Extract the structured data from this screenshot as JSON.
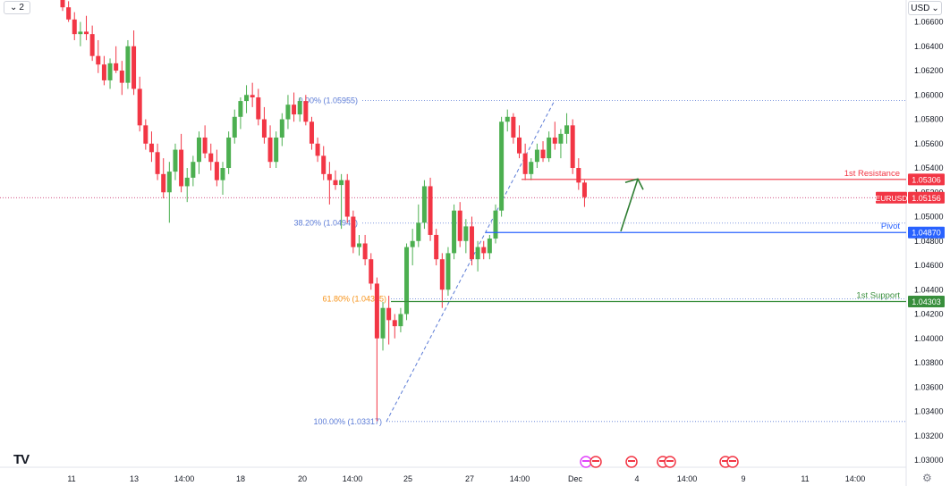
{
  "toolbar": {
    "interval_label": "2",
    "currency_label": "USD"
  },
  "colors": {
    "up": "#26a69a",
    "up_fill": "#4caf50",
    "down": "#f23645",
    "resistance": "#f23645",
    "pivot": "#2962ff",
    "support": "#388e3c",
    "symbol_tag": "#f23645",
    "fib_line": "#5b7bd6",
    "fib_61_text": "#f7931a",
    "arrow": "#2e7d32"
  },
  "icons": [
    "chevron-down-icon",
    "tradingview-logo",
    "settings-gear-icon",
    "event-flag-icon"
  ],
  "chart_data": {
    "type": "candlestick",
    "symbol": "EURUSD",
    "current_price": "1.05156",
    "ylim": [
      1.03,
      1.0678
    ],
    "y_ticks": [
      "1.03000",
      "1.03200",
      "1.03400",
      "1.03600",
      "1.03800",
      "1.04000",
      "1.04200",
      "1.04400",
      "1.04600",
      "1.04800",
      "1.05000",
      "1.05200",
      "1.05400",
      "1.05600",
      "1.05800",
      "1.06000",
      "1.06200",
      "1.06400",
      "1.06600"
    ],
    "x_ticks": [
      "11",
      "13",
      "14:00",
      "18",
      "20",
      "14:00",
      "25",
      "27",
      "14:00",
      "Dec",
      "4",
      "14:00",
      "9",
      "11",
      "14:00"
    ],
    "levels": [
      {
        "label": "1st Resistance",
        "value": "1.05306",
        "color_key": "resistance"
      },
      {
        "label": "Pivot",
        "value": "1.04870",
        "color_key": "pivot"
      },
      {
        "label": "1st Support",
        "value": "1.04303",
        "color_key": "support"
      }
    ],
    "fib_levels": [
      {
        "label": "0.00% (1.05955)",
        "value": 1.05955
      },
      {
        "label": "38.20% (1.04947)",
        "value": 1.04947
      },
      {
        "label": "61.80% (1.04325)",
        "value": 1.04325
      },
      {
        "label": "100.00% (1.03317)",
        "value": 1.03317
      }
    ],
    "fib_trendline": {
      "from": [
        1.03317,
        "low"
      ],
      "to": [
        1.05955,
        "high"
      ]
    },
    "arrow": {
      "from": 1.0488,
      "to": 1.0531,
      "direction": "up"
    },
    "candles": [
      [
        1.0678,
        1.0683,
        1.0669,
        1.0672
      ],
      [
        1.0672,
        1.0677,
        1.066,
        1.0662
      ],
      [
        1.0662,
        1.0668,
        1.0645,
        1.065
      ],
      [
        1.065,
        1.066,
        1.064,
        1.0652
      ],
      [
        1.0652,
        1.0665,
        1.0645,
        1.065
      ],
      [
        1.065,
        1.0657,
        1.0628,
        1.0632
      ],
      [
        1.0632,
        1.0645,
        1.0618,
        1.0625
      ],
      [
        1.0625,
        1.0632,
        1.0608,
        1.0612
      ],
      [
        1.0612,
        1.063,
        1.0605,
        1.0626
      ],
      [
        1.0626,
        1.064,
        1.0618,
        1.062
      ],
      [
        1.062,
        1.0628,
        1.06,
        1.061
      ],
      [
        1.061,
        1.0645,
        1.0605,
        1.064
      ],
      [
        1.064,
        1.0653,
        1.06,
        1.0605
      ],
      [
        1.0605,
        1.0615,
        1.057,
        1.0575
      ],
      [
        1.0575,
        1.058,
        1.0555,
        1.056
      ],
      [
        1.056,
        1.057,
        1.0545,
        1.0553
      ],
      [
        1.0553,
        1.056,
        1.053,
        1.0535
      ],
      [
        1.0535,
        1.0548,
        1.0515,
        1.052
      ],
      [
        1.052,
        1.0545,
        1.0495,
        1.0537
      ],
      [
        1.0537,
        1.056,
        1.053,
        1.0555
      ],
      [
        1.0555,
        1.0568,
        1.052,
        1.0525
      ],
      [
        1.0525,
        1.054,
        1.0512,
        1.0532
      ],
      [
        1.0532,
        1.055,
        1.0525,
        1.0545
      ],
      [
        1.0545,
        1.057,
        1.0535,
        1.0565
      ],
      [
        1.0565,
        1.0575,
        1.0548,
        1.0552
      ],
      [
        1.0552,
        1.056,
        1.0538,
        1.0545
      ],
      [
        1.0545,
        1.0555,
        1.0525,
        1.053
      ],
      [
        1.053,
        1.0545,
        1.0518,
        1.054
      ],
      [
        1.054,
        1.057,
        1.0535,
        1.0565
      ],
      [
        1.0565,
        1.0588,
        1.056,
        1.0582
      ],
      [
        1.0582,
        1.0598,
        1.0572,
        1.0595
      ],
      [
        1.0595,
        1.0608,
        1.0585,
        1.06
      ],
      [
        1.06,
        1.061,
        1.059,
        1.0598
      ],
      [
        1.0598,
        1.0605,
        1.0575,
        1.058
      ],
      [
        1.058,
        1.059,
        1.056,
        1.0565
      ],
      [
        1.0565,
        1.0575,
        1.054,
        1.0545
      ],
      [
        1.0545,
        1.057,
        1.054,
        1.0565
      ],
      [
        1.0565,
        1.0585,
        1.0558,
        1.058
      ],
      [
        1.058,
        1.06,
        1.0572,
        1.0592
      ],
      [
        1.0592,
        1.0602,
        1.0578,
        1.0584
      ],
      [
        1.0584,
        1.0598,
        1.0578,
        1.0595
      ],
      [
        1.0595,
        1.06,
        1.0575,
        1.0578
      ],
      [
        1.0578,
        1.0582,
        1.0555,
        1.056
      ],
      [
        1.056,
        1.0565,
        1.0545,
        1.055
      ],
      [
        1.055,
        1.0558,
        1.053,
        1.0535
      ],
      [
        1.0535,
        1.0545,
        1.051,
        1.053
      ],
      [
        1.053,
        1.0538,
        1.0522,
        1.0526
      ],
      [
        1.0526,
        1.0535,
        1.049,
        1.053
      ],
      [
        1.053,
        1.0535,
        1.0495,
        1.05
      ],
      [
        1.05,
        1.0505,
        1.047,
        1.0475
      ],
      [
        1.0475,
        1.0485,
        1.0468,
        1.0478
      ],
      [
        1.0478,
        1.0485,
        1.046,
        1.0465
      ],
      [
        1.0465,
        1.047,
        1.044,
        1.0445
      ],
      [
        1.0445,
        1.045,
        1.0332,
        1.04
      ],
      [
        1.04,
        1.043,
        1.039,
        1.0425
      ],
      [
        1.0425,
        1.0435,
        1.0395,
        1.0415
      ],
      [
        1.0415,
        1.042,
        1.04,
        1.041
      ],
      [
        1.041,
        1.0425,
        1.0405,
        1.042
      ],
      [
        1.042,
        1.0478,
        1.0415,
        1.0475
      ],
      [
        1.0475,
        1.049,
        1.046,
        1.048
      ],
      [
        1.048,
        1.051,
        1.0475,
        1.0495
      ],
      [
        1.0495,
        1.053,
        1.049,
        1.0525
      ],
      [
        1.0525,
        1.0532,
        1.048,
        1.0485
      ],
      [
        1.0485,
        1.049,
        1.046,
        1.0465
      ],
      [
        1.0465,
        1.047,
        1.0425,
        1.044
      ],
      [
        1.044,
        1.0475,
        1.0435,
        1.047
      ],
      [
        1.047,
        1.051,
        1.0465,
        1.0505
      ],
      [
        1.0505,
        1.0512,
        1.0475,
        1.048
      ],
      [
        1.048,
        1.0498,
        1.047,
        1.0492
      ],
      [
        1.0492,
        1.05,
        1.046,
        1.0465
      ],
      [
        1.0465,
        1.048,
        1.0455,
        1.0475
      ],
      [
        1.0475,
        1.048,
        1.0465,
        1.047
      ],
      [
        1.047,
        1.0485,
        1.0465,
        1.0482
      ],
      [
        1.0482,
        1.051,
        1.0478,
        1.0505
      ],
      [
        1.0505,
        1.0582,
        1.05,
        1.0578
      ],
      [
        1.0578,
        1.0588,
        1.057,
        1.0582
      ],
      [
        1.0582,
        1.0585,
        1.056,
        1.0565
      ],
      [
        1.0565,
        1.0575,
        1.0548,
        1.0552
      ],
      [
        1.0552,
        1.056,
        1.053,
        1.0535
      ],
      [
        1.0535,
        1.0548,
        1.053,
        1.0545
      ],
      [
        1.0545,
        1.056,
        1.054,
        1.0555
      ],
      [
        1.0555,
        1.0562,
        1.0545,
        1.0548
      ],
      [
        1.0548,
        1.057,
        1.0545,
        1.0565
      ],
      [
        1.0565,
        1.0578,
        1.0555,
        1.056
      ],
      [
        1.056,
        1.0572,
        1.0548,
        1.0568
      ],
      [
        1.0568,
        1.0585,
        1.056,
        1.0575
      ],
      [
        1.0575,
        1.058,
        1.0535,
        1.054
      ],
      [
        1.054,
        1.0548,
        1.0522,
        1.0528
      ],
      [
        1.0528,
        1.053,
        1.0508,
        1.0516
      ]
    ]
  }
}
